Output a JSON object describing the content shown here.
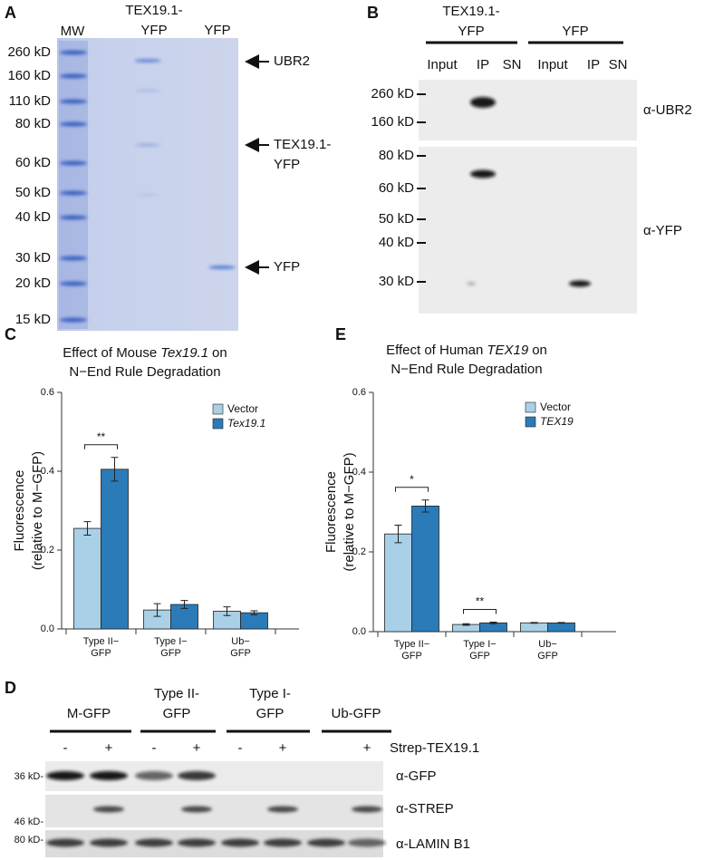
{
  "panel_a": {
    "letter": "A",
    "lanes": {
      "mw": "MW",
      "fusion": [
        "TEX19.1-",
        "YFP"
      ],
      "control": "YFP"
    },
    "markers": [
      "260 kD",
      "160 kD",
      "110 kD",
      "80 kD",
      "60 kD",
      "50 kD",
      "40 kD",
      "30 kD",
      "20 kD",
      "15 kD"
    ],
    "bands": [
      [
        "UBR2"
      ],
      [
        "TEX19.1-",
        "YFP"
      ],
      [
        "YFP"
      ]
    ]
  },
  "panel_b": {
    "letter": "B",
    "groups": [
      {
        "name": [
          "TEX19.1-",
          "YFP"
        ],
        "lanes": [
          "Input",
          "IP",
          "SN"
        ]
      },
      {
        "name": [
          "YFP"
        ],
        "lanes": [
          "Input",
          "IP",
          "SN"
        ]
      }
    ],
    "markers_top": [
      "260 kD",
      "160 kD"
    ],
    "markers_bottom": [
      "80 kD",
      "60 kD",
      "50 kD",
      "40 kD",
      "30 kD"
    ],
    "antibodies": [
      "α-UBR2",
      "α-YFP"
    ]
  },
  "chart_data": [
    {
      "type": "bar",
      "letter": "C",
      "title": {
        "prefix": "Effect of Mouse",
        "italic": "Tex19.1",
        "suffix": "on",
        "line2": "N−End Rule Degradation"
      },
      "ylabel": [
        "Fluorescence",
        "(relative to M−GFP)"
      ],
      "categories": [
        [
          "Type II−",
          "GFP"
        ],
        [
          "Type I−",
          "GFP"
        ],
        [
          "Ub−",
          "GFP"
        ]
      ],
      "series": [
        {
          "name": "Vector",
          "color": "#a9d0e6",
          "italic": false,
          "values": [
            0.255,
            0.048,
            0.045
          ],
          "errors": [
            0.017,
            0.016,
            0.011
          ]
        },
        {
          "name": "Tex19.1",
          "color": "#2b7bb9",
          "italic": true,
          "values": [
            0.405,
            0.062,
            0.041
          ],
          "errors": [
            0.03,
            0.01,
            0.005
          ]
        }
      ],
      "significance": [
        "**",
        null,
        null
      ],
      "ylim": [
        0,
        0.6
      ],
      "yticks": [
        {
          "value": 0,
          "label": "0.0"
        },
        {
          "value": 0.2,
          "label": "0.2"
        },
        {
          "value": 0.4,
          "label": "0.4"
        },
        {
          "value": 0.6,
          "label": "0.6"
        }
      ],
      "legend": "upper right"
    },
    {
      "type": "bar",
      "letter": "E",
      "title": {
        "prefix": "Effect of Human",
        "italic": "TEX19",
        "suffix": "on",
        "line2": "N−End Rule Degradation"
      },
      "ylabel": [
        "Fluorescence",
        "(relative to M−GFP)"
      ],
      "categories": [
        [
          "Type II−",
          "GFP"
        ],
        [
          "Type I−",
          "GFP"
        ],
        [
          "Ub−",
          "GFP"
        ]
      ],
      "series": [
        {
          "name": "Vector",
          "color": "#a9d0e6",
          "italic": false,
          "values": [
            0.245,
            0.018,
            0.022
          ],
          "errors": [
            0.022,
            0.002,
            0.001
          ]
        },
        {
          "name": "TEX19",
          "color": "#2b7bb9",
          "italic": true,
          "values": [
            0.315,
            0.022,
            0.022
          ],
          "errors": [
            0.015,
            0.002,
            0.001
          ]
        }
      ],
      "significance": [
        "*",
        "**",
        null
      ],
      "ylim": [
        0,
        0.6
      ],
      "yticks": [
        {
          "value": 0,
          "label": "0.0"
        },
        {
          "value": 0.2,
          "label": "0.2"
        },
        {
          "value": 0.4,
          "label": "0.4"
        },
        {
          "value": 0.6,
          "label": "0.6"
        }
      ],
      "legend": "upper right"
    }
  ],
  "panel_d": {
    "letter": "D",
    "groups": [
      {
        "name": [
          "M-GFP"
        ],
        "signs": [
          "-",
          "+"
        ]
      },
      {
        "name": [
          "Type II-",
          "GFP"
        ],
        "signs": [
          "-",
          "+"
        ]
      },
      {
        "name": [
          "Type I-",
          "GFP"
        ],
        "signs": [
          "-",
          "+"
        ]
      },
      {
        "name": [
          "Ub-GFP"
        ],
        "signs": [
          null,
          "+"
        ]
      }
    ],
    "treatment": "Strep-TEX19.1",
    "markers": [
      "36 kD-",
      "46 kD-",
      "80 kD-"
    ],
    "antibodies": [
      "α-GFP",
      "α-STREP",
      "α-LAMIN B1"
    ]
  }
}
